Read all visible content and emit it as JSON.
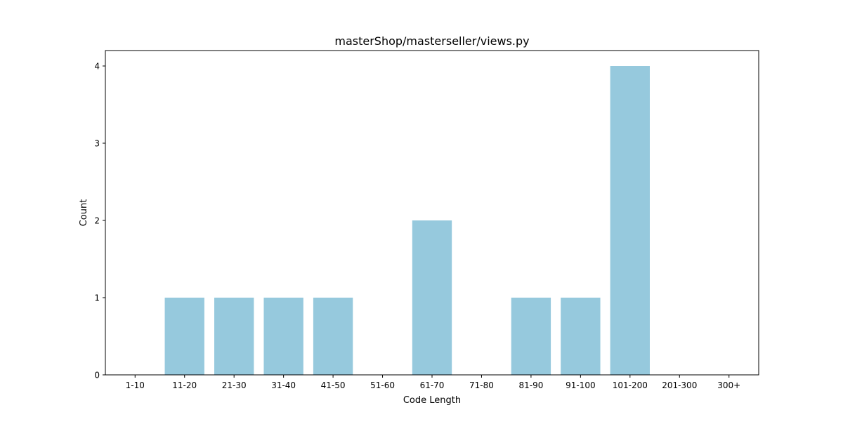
{
  "chart_data": {
    "type": "bar",
    "title": "masterShop/masterseller/views.py",
    "xlabel": "Code Length",
    "ylabel": "Count",
    "categories": [
      "1-10",
      "11-20",
      "21-30",
      "31-40",
      "41-50",
      "51-60",
      "61-70",
      "71-80",
      "81-90",
      "91-100",
      "101-200",
      "201-300",
      "300+"
    ],
    "values": [
      0,
      1,
      1,
      1,
      1,
      0,
      2,
      0,
      1,
      1,
      4,
      0,
      0
    ],
    "ylim": [
      0,
      4.2
    ],
    "yticks": [
      0,
      1,
      2,
      3,
      4
    ],
    "grid": false,
    "bar_color": "#96c9dd"
  }
}
